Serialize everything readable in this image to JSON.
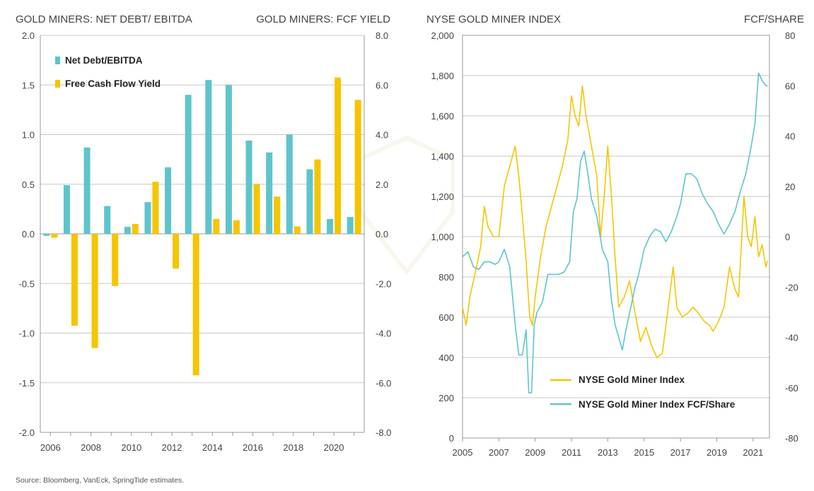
{
  "source_note": "Source: Bloomberg, VanEck, SpringTide estimates.",
  "colors": {
    "teal": "#5ec4cc",
    "gold": "#f5c500",
    "axis": "#999999",
    "grid": "#c8c8c8"
  },
  "chart_data": [
    {
      "type": "bar",
      "title_left": "GOLD MINERS: NET DEBT/ EBITDA",
      "title_right": "GOLD MINERS: FCF YIELD",
      "categories": [
        "2006",
        "2007",
        "2008",
        "2009",
        "2010",
        "2011",
        "2012",
        "2013",
        "2014",
        "2015",
        "2016",
        "2017",
        "2018",
        "2019",
        "2020",
        "2021"
      ],
      "x_tick_labels": [
        "2006",
        "2008",
        "2010",
        "2012",
        "2014",
        "2016",
        "2018",
        "2020"
      ],
      "left_axis": {
        "ylim": [
          -2.0,
          2.0
        ],
        "ticks": [
          "2.0",
          "1.5",
          "1.0",
          "0.5",
          "0.0",
          "-0.5",
          "-1.0",
          "-1.5",
          "-2.0"
        ]
      },
      "right_axis": {
        "ylim": [
          -8.0,
          8.0
        ],
        "ticks": [
          "8.0",
          "6.0",
          "4.0",
          "2.0",
          "0.0",
          "-2.0",
          "-4.0",
          "-6.0",
          "-8.0"
        ]
      },
      "series": [
        {
          "name": "Net Debt/EBITDA",
          "axis": "left",
          "color": "#5ec4cc",
          "values": [
            -0.02,
            0.49,
            0.87,
            0.28,
            0.07,
            0.32,
            0.67,
            1.4,
            1.55,
            1.5,
            0.94,
            0.82,
            1.0,
            0.65,
            0.15,
            0.17
          ]
        },
        {
          "name": "Free Cash Flow Yield",
          "axis": "right",
          "color": "#f5c500",
          "values": [
            -0.15,
            -3.7,
            -4.6,
            -2.1,
            0.4,
            2.1,
            -1.4,
            -5.7,
            0.6,
            0.55,
            2.0,
            1.5,
            0.3,
            3.0,
            6.3,
            5.4
          ]
        }
      ],
      "legend": "top-left",
      "grid": "horizontal"
    },
    {
      "type": "line",
      "title_left": "NYSE GOLD MINER INDEX",
      "title_right": "FCF/SHARE",
      "x_tick_labels": [
        "2005",
        "2007",
        "2009",
        "2011",
        "2013",
        "2015",
        "2017",
        "2019",
        "2021"
      ],
      "xlim": [
        2005,
        2021.9
      ],
      "left_axis": {
        "ylim": [
          0,
          2000
        ],
        "ticks": [
          "2,000",
          "1,800",
          "1,600",
          "1,400",
          "1,200",
          "1,000",
          "800",
          "600",
          "400",
          "200",
          "0"
        ]
      },
      "right_axis": {
        "ylim": [
          -80,
          80
        ],
        "ticks": [
          "80",
          "60",
          "40",
          "20",
          "0",
          "-20",
          "-40",
          "-60",
          "-80"
        ]
      },
      "series": [
        {
          "name": "NYSE Gold Miner Index",
          "axis": "left",
          "color": "#f5c500",
          "x": [
            2005.0,
            2005.2,
            2005.4,
            2005.7,
            2006.0,
            2006.2,
            2006.4,
            2006.7,
            2007.0,
            2007.3,
            2007.6,
            2007.9,
            2008.1,
            2008.3,
            2008.5,
            2008.7,
            2008.85,
            2009.0,
            2009.3,
            2009.6,
            2009.9,
            2010.2,
            2010.5,
            2010.8,
            2011.0,
            2011.2,
            2011.4,
            2011.6,
            2011.8,
            2012.0,
            2012.2,
            2012.4,
            2012.6,
            2012.8,
            2013.0,
            2013.2,
            2013.4,
            2013.6,
            2013.9,
            2014.2,
            2014.5,
            2014.8,
            2015.1,
            2015.4,
            2015.7,
            2016.0,
            2016.3,
            2016.6,
            2016.8,
            2017.1,
            2017.4,
            2017.7,
            2018.0,
            2018.3,
            2018.6,
            2018.8,
            2019.1,
            2019.4,
            2019.7,
            2020.0,
            2020.2,
            2020.5,
            2020.7,
            2020.9,
            2021.1,
            2021.3,
            2021.5,
            2021.7,
            2021.8
          ],
          "y": [
            650,
            560,
            700,
            820,
            950,
            1150,
            1050,
            1000,
            1000,
            1250,
            1350,
            1450,
            1300,
            1100,
            880,
            600,
            560,
            700,
            900,
            1050,
            1150,
            1250,
            1350,
            1480,
            1700,
            1600,
            1550,
            1750,
            1600,
            1500,
            1400,
            1300,
            1000,
            1200,
            1450,
            1200,
            900,
            650,
            700,
            780,
            620,
            480,
            550,
            460,
            400,
            420,
            630,
            850,
            650,
            600,
            620,
            650,
            620,
            580,
            560,
            530,
            580,
            650,
            850,
            740,
            700,
            1200,
            1000,
            950,
            1100,
            900,
            960,
            850,
            880
          ]
        },
        {
          "name": "NYSE Gold Miner Index FCF/Share",
          "axis": "right",
          "color": "#5ec4cc",
          "x": [
            2005.0,
            2005.3,
            2005.6,
            2005.9,
            2006.2,
            2006.5,
            2006.8,
            2007.0,
            2007.3,
            2007.6,
            2007.9,
            2008.1,
            2008.3,
            2008.5,
            2008.65,
            2008.8,
            2008.95,
            2009.1,
            2009.4,
            2009.7,
            2010.0,
            2010.3,
            2010.6,
            2010.9,
            2011.1,
            2011.3,
            2011.5,
            2011.7,
            2011.9,
            2012.1,
            2012.4,
            2012.7,
            2013.0,
            2013.2,
            2013.4,
            2013.6,
            2013.8,
            2014.0,
            2014.3,
            2014.5,
            2014.7,
            2015.0,
            2015.3,
            2015.6,
            2015.9,
            2016.2,
            2016.5,
            2016.8,
            2017.0,
            2017.3,
            2017.6,
            2017.9,
            2018.2,
            2018.5,
            2018.8,
            2019.1,
            2019.4,
            2019.7,
            2020.0,
            2020.3,
            2020.6,
            2020.9,
            2021.1,
            2021.3,
            2021.5,
            2021.7,
            2021.8
          ],
          "y": [
            -8,
            -6,
            -12,
            -13,
            -10,
            -10,
            -11,
            -10,
            -5,
            -12,
            -35,
            -47,
            -47,
            -37,
            -62,
            -62,
            -35,
            -30,
            -26,
            -15,
            -15,
            -15,
            -14,
            -10,
            10,
            15,
            30,
            34,
            25,
            15,
            8,
            -5,
            -10,
            -25,
            -35,
            -40,
            -45,
            -37,
            -27,
            -20,
            -15,
            -5,
            0,
            3,
            2,
            -2,
            2,
            8,
            13,
            25,
            25,
            23,
            17,
            13,
            10,
            5,
            1,
            5,
            10,
            18,
            25,
            36,
            45,
            65,
            62,
            60,
            60
          ]
        }
      ],
      "legend": "bottom-center",
      "grid": "horizontal"
    }
  ]
}
